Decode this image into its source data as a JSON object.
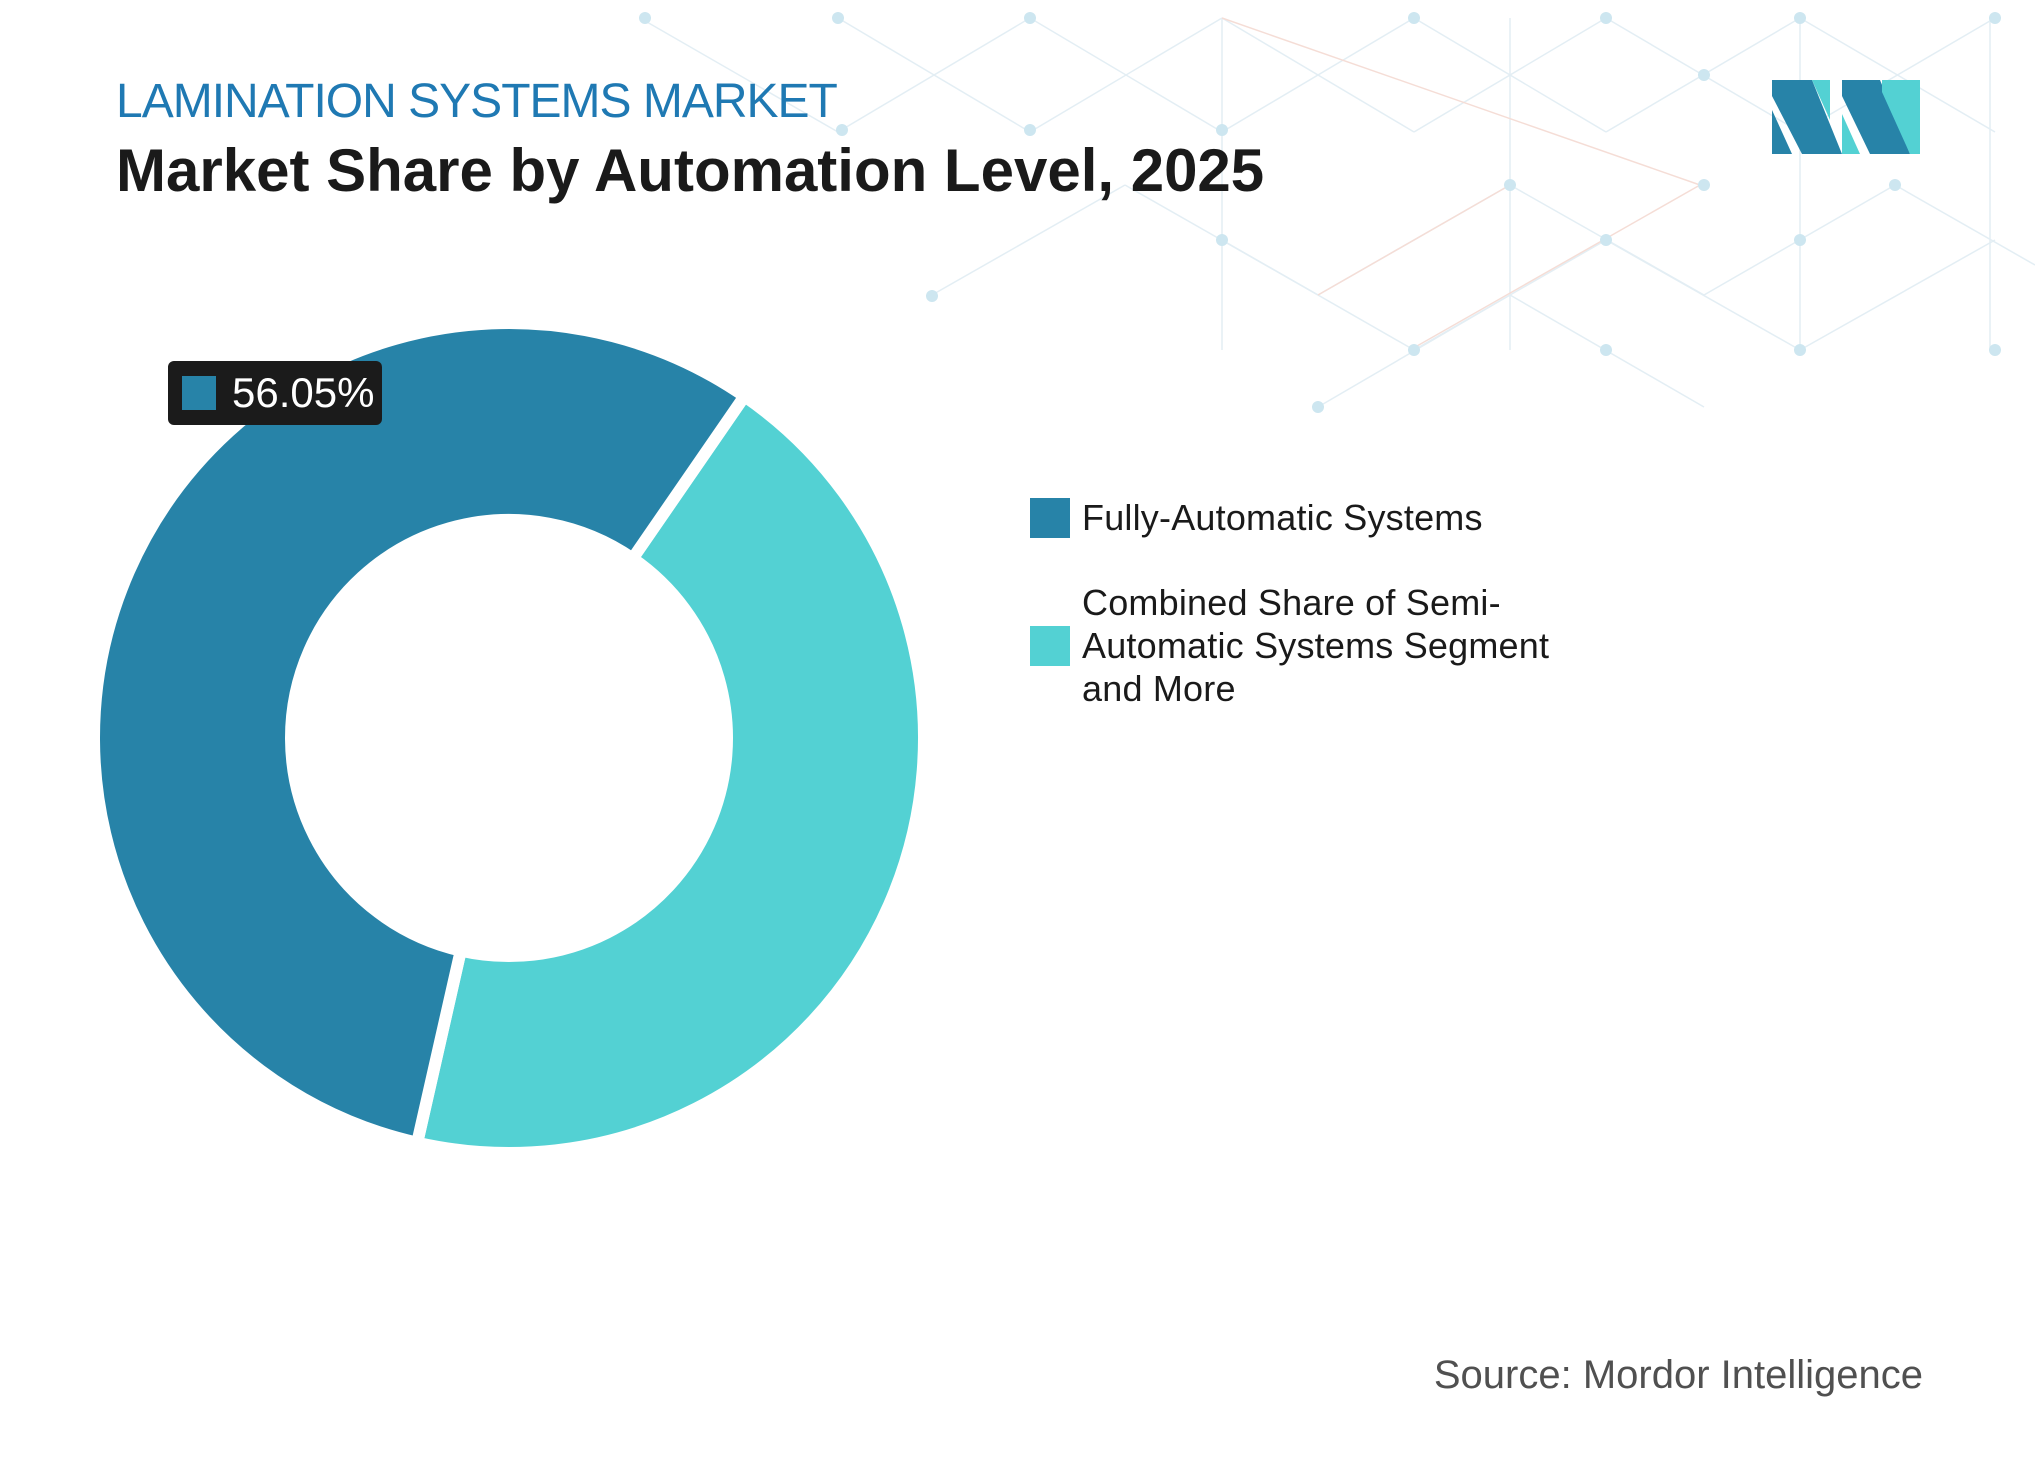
{
  "header": {
    "subtitle": "LAMINATION SYSTEMS MARKET",
    "title": "Market Share by Automation Level, 2025"
  },
  "colors": {
    "subtitle": "#1f79b3",
    "series_primary": "#2783a8",
    "series_secondary": "#53d1d3",
    "label_background": "#1b1b1b"
  },
  "logo": {
    "name": "mordor-intelligence-logo"
  },
  "chart_data": {
    "type": "pie",
    "donut": true,
    "categories": [
      "Fully-Automatic Systems",
      "Combined Share of Semi-Automatic Systems Segment and More"
    ],
    "values": [
      56.05,
      43.95
    ],
    "colors": [
      "#2783a8",
      "#53d1d3"
    ],
    "data_labels": [
      "56.05%"
    ],
    "legend_position": "right"
  },
  "legend": {
    "items": [
      {
        "label": "Fully-Automatic Systems",
        "color": "#2783a8"
      },
      {
        "label": "Combined Share of Semi-Automatic Systems Segment and More",
        "color": "#53d1d3"
      }
    ]
  },
  "source": "Source: Mordor Intelligence"
}
